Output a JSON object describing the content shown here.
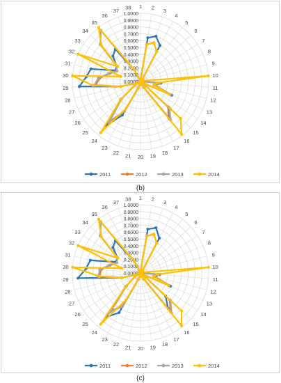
{
  "charts": [
    {
      "panel": "b",
      "caption": "(b)",
      "chart_data": {
        "type": "radar",
        "categories": [
          "1",
          "2",
          "3",
          "4",
          "5",
          "6",
          "7",
          "8",
          "9",
          "10",
          "11",
          "12",
          "13",
          "14",
          "15",
          "16",
          "17",
          "18",
          "19",
          "20",
          "21",
          "22",
          "23",
          "24",
          "25",
          "26",
          "27",
          "28",
          "29",
          "30",
          "31",
          "32",
          "33",
          "34",
          "35",
          "36",
          "37",
          "38"
        ],
        "rlim": [
          0,
          1.0
        ],
        "rticks": [
          "0.0000",
          "0.1000",
          "0.2000",
          "0.3000",
          "0.4000",
          "0.5000",
          "0.6000",
          "0.7000",
          "0.8000",
          "0.9000",
          "1.0000"
        ],
        "legend": "bottom",
        "series": [
          {
            "name": "2011",
            "color": "#2e75b6",
            "values": [
              0.02,
              0.65,
              0.7,
              0.6,
              0.05,
              0.03,
              0.03,
              0.02,
              0.04,
              0.02,
              0.3,
              0.22,
              0.5,
              0.03,
              0.55,
              0.68,
              0.1,
              0.02,
              0.03,
              0.05,
              0.02,
              0.1,
              0.56,
              0.82,
              0.4,
              0.1,
              0.05,
              0.3,
              0.9,
              0.8,
              0.75,
              0.4,
              0.42,
              0.55,
              0.6,
              0.2,
              0.02,
              0.02
            ]
          },
          {
            "name": "2012",
            "color": "#ed7d31",
            "values": [
              0.02,
              0.55,
              0.6,
              0.5,
              0.05,
              0.03,
              0.03,
              0.02,
              0.04,
              0.02,
              0.28,
              0.22,
              0.48,
              0.03,
              0.56,
              0.7,
              0.1,
              0.02,
              0.03,
              0.05,
              0.02,
              0.1,
              0.5,
              0.74,
              0.38,
              0.1,
              0.05,
              0.3,
              0.66,
              0.6,
              0.47,
              0.38,
              0.42,
              0.8,
              0.95,
              0.2,
              0.02,
              0.02
            ]
          },
          {
            "name": "2013",
            "color": "#a5a5a5",
            "values": [
              0.02,
              0.55,
              0.6,
              0.5,
              0.05,
              0.03,
              0.03,
              0.02,
              0.04,
              0.02,
              0.28,
              0.22,
              0.48,
              0.03,
              0.58,
              0.72,
              0.1,
              0.02,
              0.03,
              0.05,
              0.02,
              0.1,
              0.5,
              0.76,
              0.38,
              0.1,
              0.05,
              0.3,
              0.68,
              0.62,
              0.48,
              0.38,
              0.42,
              0.8,
              0.95,
              0.2,
              0.02,
              0.02
            ]
          },
          {
            "name": "2014",
            "color": "#ffc000",
            "values": [
              0.02,
              0.55,
              0.6,
              0.5,
              0.05,
              0.03,
              0.03,
              0.02,
              0.04,
              1.0,
              0.25,
              0.2,
              0.46,
              0.03,
              0.8,
              0.98,
              0.1,
              0.02,
              0.03,
              0.05,
              0.02,
              0.1,
              0.45,
              0.95,
              0.4,
              0.1,
              0.05,
              0.3,
              0.7,
              1.0,
              0.3,
              1.0,
              0.4,
              0.78,
              1.0,
              0.2,
              0.02,
              0.02
            ]
          }
        ]
      }
    },
    {
      "panel": "c",
      "caption": "(c)",
      "chart_data": {
        "type": "radar",
        "categories": [
          "1",
          "2",
          "3",
          "4",
          "5",
          "6",
          "7",
          "8",
          "9",
          "10",
          "11",
          "12",
          "13",
          "14",
          "15",
          "16",
          "17",
          "18",
          "19",
          "20",
          "21",
          "22",
          "23",
          "24",
          "25",
          "26",
          "27",
          "28",
          "29",
          "30",
          "31",
          "32",
          "33",
          "34",
          "35",
          "36",
          "37",
          "38"
        ],
        "rlim": [
          0,
          1.0
        ],
        "rticks": [
          "0.0000",
          "0.1000",
          "0.2000",
          "0.3000",
          "0.4000",
          "0.5000",
          "0.6000",
          "0.7000",
          "0.8000",
          "0.9000",
          "1.0000"
        ],
        "legend": "bottom",
        "series": [
          {
            "name": "2011",
            "color": "#2e75b6",
            "values": [
              0.02,
              0.65,
              0.7,
              0.58,
              0.05,
              0.03,
              0.03,
              0.02,
              0.04,
              0.02,
              0.28,
              0.22,
              0.48,
              0.03,
              0.5,
              0.66,
              0.1,
              0.02,
              0.03,
              0.05,
              0.02,
              0.1,
              0.66,
              0.82,
              0.3,
              0.1,
              0.05,
              0.28,
              0.92,
              0.8,
              0.76,
              0.4,
              0.4,
              0.55,
              0.6,
              0.2,
              0.02,
              0.02
            ]
          },
          {
            "name": "2012",
            "color": "#ed7d31",
            "values": [
              0.02,
              0.55,
              0.6,
              0.5,
              0.05,
              0.03,
              0.03,
              0.02,
              0.04,
              0.02,
              0.26,
              0.2,
              0.46,
              0.03,
              0.58,
              0.72,
              0.1,
              0.02,
              0.03,
              0.05,
              0.02,
              0.1,
              0.55,
              0.7,
              0.28,
              0.1,
              0.05,
              0.28,
              0.6,
              0.58,
              0.46,
              0.38,
              0.4,
              0.8,
              0.95,
              0.2,
              0.02,
              0.02
            ]
          },
          {
            "name": "2013",
            "color": "#a5a5a5",
            "values": [
              0.02,
              0.55,
              0.6,
              0.5,
              0.05,
              0.03,
              0.03,
              0.02,
              0.04,
              0.02,
              0.26,
              0.2,
              0.46,
              0.03,
              0.6,
              0.74,
              0.1,
              0.02,
              0.03,
              0.05,
              0.02,
              0.1,
              0.56,
              0.72,
              0.28,
              0.1,
              0.05,
              0.28,
              0.62,
              0.6,
              0.47,
              0.38,
              0.4,
              0.8,
              0.95,
              0.2,
              0.02,
              0.02
            ]
          },
          {
            "name": "2014",
            "color": "#ffc000",
            "values": [
              0.02,
              0.55,
              0.6,
              0.5,
              0.05,
              0.03,
              0.03,
              0.02,
              0.04,
              1.0,
              0.25,
              0.2,
              0.44,
              0.03,
              0.82,
              0.98,
              0.1,
              0.02,
              0.03,
              0.05,
              0.02,
              0.1,
              0.45,
              0.95,
              0.3,
              0.1,
              0.05,
              0.28,
              0.6,
              1.0,
              0.28,
              1.0,
              0.4,
              0.78,
              1.0,
              0.2,
              0.02,
              0.02
            ]
          }
        ]
      }
    }
  ]
}
